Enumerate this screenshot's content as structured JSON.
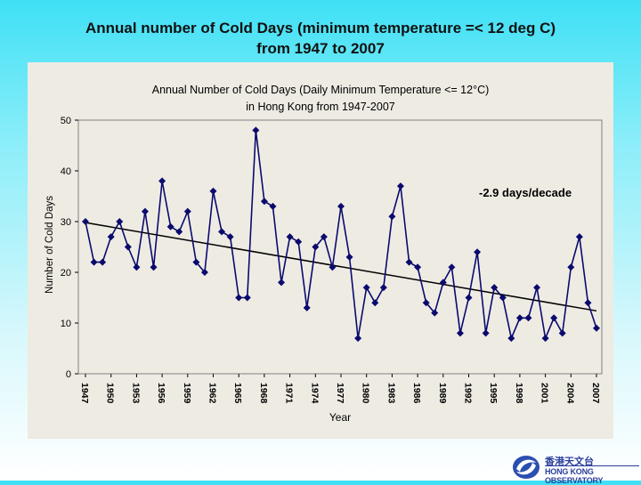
{
  "slide": {
    "title_line1": "Annual number of Cold Days (minimum temperature =< 12 deg C)",
    "title_line2": "from 1947 to 2007"
  },
  "logo": {
    "chinese": "香港天文台",
    "english": "HONG KONG OBSERVATORY"
  },
  "chart_data": {
    "type": "line",
    "title_line1": "Annual Number of Cold Days (Daily Minimum Temperature <= 12°C)",
    "title_line2": "in Hong Kong from 1947-2007",
    "xlabel": "Year",
    "ylabel": "Number of Cold Days",
    "ylim": [
      0,
      50
    ],
    "yticks": [
      "0",
      "10",
      "20",
      "30",
      "40",
      "50"
    ],
    "xticks": [
      "1947",
      "1950",
      "1953",
      "1956",
      "1959",
      "1962",
      "1965",
      "1968",
      "1971",
      "1974",
      "1977",
      "1980",
      "1983",
      "1986",
      "1989",
      "1992",
      "1995",
      "1998",
      "2001",
      "2004",
      "2007"
    ],
    "x": [
      1947,
      1948,
      1949,
      1950,
      1951,
      1952,
      1953,
      1954,
      1955,
      1956,
      1957,
      1958,
      1959,
      1960,
      1961,
      1962,
      1963,
      1964,
      1965,
      1966,
      1967,
      1968,
      1969,
      1970,
      1971,
      1972,
      1973,
      1974,
      1975,
      1976,
      1977,
      1978,
      1979,
      1980,
      1981,
      1982,
      1983,
      1984,
      1985,
      1986,
      1987,
      1988,
      1989,
      1990,
      1991,
      1992,
      1993,
      1994,
      1995,
      1996,
      1997,
      1998,
      1999,
      2000,
      2001,
      2002,
      2003,
      2004,
      2005,
      2006,
      2007
    ],
    "values": [
      30,
      22,
      22,
      27,
      30,
      25,
      21,
      32,
      21,
      38,
      29,
      28,
      32,
      22,
      20,
      36,
      28,
      27,
      15,
      15,
      48,
      34,
      33,
      18,
      27,
      26,
      13,
      25,
      27,
      21,
      33,
      23,
      7,
      17,
      14,
      17,
      31,
      37,
      22,
      21,
      14,
      12,
      18,
      21,
      8,
      15,
      24,
      8,
      17,
      15,
      7,
      11,
      11,
      17,
      7,
      11,
      8,
      21,
      27,
      14,
      9
    ],
    "trend": {
      "label": "-2.9 days/decade",
      "start": [
        1947,
        29.8
      ],
      "end": [
        2007,
        12.4
      ]
    },
    "series_color": "#0a0a6e",
    "trend_color": "#000000",
    "grid": false
  }
}
